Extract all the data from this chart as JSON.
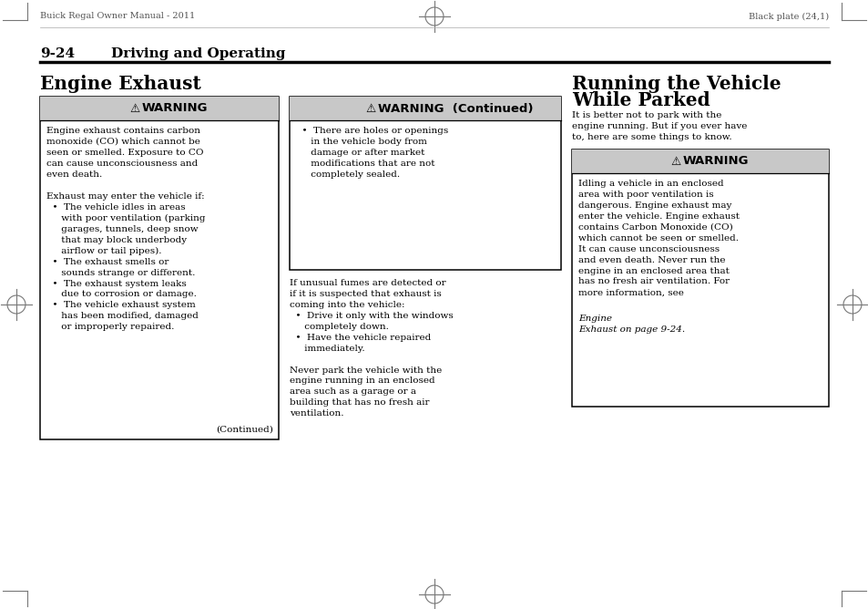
{
  "bg_color": "#ffffff",
  "page_header_left": "Buick Regal Owner Manual - 2011",
  "page_header_right": "Black plate (24,1)",
  "section_number": "9-24",
  "section_title": "Driving and Operating",
  "col1_heading": "Engine Exhaust",
  "col3_heading_line1": "Running the Vehicle",
  "col3_heading_line2": "While Parked",
  "col3_intro": "It is better not to park with the\nengine running. But if you ever have\nto, here are some things to know.",
  "warning_bg": "#c8c8c8",
  "box_bg": "#ffffff",
  "box_border": "#000000",
  "text_color": "#000000",
  "gray_color": "#777777",
  "continued": "(Continued)",
  "col1_body": "Engine exhaust contains carbon\nmonoxide (CO) which cannot be\nseen or smelled. Exposure to CO\ncan cause unconsciousness and\neven death.\n\nExhaust may enter the vehicle if:\n  •  The vehicle idles in areas\n     with poor ventilation (parking\n     garages, tunnels, deep snow\n     that may block underbody\n     airflow or tail pipes).\n  •  The exhaust smells or\n     sounds strange or different.\n  •  The exhaust system leaks\n     due to corrosion or damage.\n  •  The vehicle exhaust system\n     has been modified, damaged\n     or improperly repaired.",
  "col2_box_body": "  •  There are holes or openings\n     in the vehicle body from\n     damage or after market\n     modifications that are not\n     completely sealed.",
  "col2_out_body": "If unusual fumes are detected or\nif it is suspected that exhaust is\ncoming into the vehicle:\n  •  Drive it only with the windows\n     completely down.\n  •  Have the vehicle repaired\n     immediately.\n\nNever park the vehicle with the\nengine running in an enclosed\narea such as a garage or a\nbuilding that has no fresh air\nventilation.",
  "col3_body_pre": "Idling a vehicle in an enclosed\narea with poor ventilation is\ndangerous. Engine exhaust may\nenter the vehicle. Engine exhaust\ncontains Carbon Monoxide (CO)\nwhich cannot be seen or smelled.\nIt can cause unconsciousness\nand even death. Never run the\nengine in an enclosed area that\nhas no fresh air ventilation. For\nmore information, see ",
  "col3_body_italic": "Engine\nExhaust on page 9-24.",
  "warn_label": "WARNING",
  "warn2_label": "WARNING  (Continued)"
}
